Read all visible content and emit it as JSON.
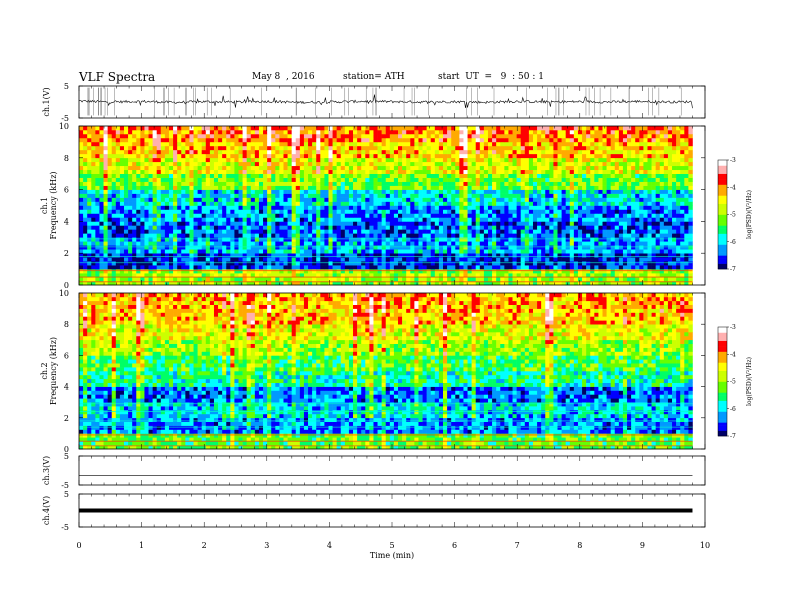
{
  "header": {
    "title": "VLF  Spectra",
    "date": "May 8  , 2016",
    "station": "station= ATH",
    "start": "start  UT  =   9  : 50 : 1"
  },
  "chart_data": [
    {
      "type": "line",
      "panel": "ch1-waveform",
      "ylabel": "ch.1(V)",
      "ylim": [
        -5,
        5
      ],
      "yticks": [
        "5",
        "-5"
      ],
      "xlim": [
        0,
        10
      ],
      "x": [
        0.0,
        0.5,
        1.0,
        1.5,
        2.0,
        2.5,
        3.0,
        3.5,
        4.0,
        4.5,
        5.0,
        5.5,
        6.0,
        6.5,
        7.0,
        7.5,
        8.0,
        8.5,
        9.0,
        9.5,
        9.8
      ],
      "y": [
        0.3,
        0.0,
        0.2,
        -0.1,
        0.1,
        0.0,
        0.2,
        -0.1,
        0.0,
        0.2,
        0.1,
        0.0,
        0.1,
        -0.1,
        0.2,
        0.0,
        0.1,
        0.0,
        0.2,
        0.0,
        0.1
      ],
      "color": "#000000"
    },
    {
      "type": "heatmap",
      "panel": "ch1-spectrogram",
      "ylabel": "ch.1\nFrequency  (kHz)",
      "ylim": [
        0,
        10
      ],
      "yticks": [
        "0",
        "2",
        "4",
        "6",
        "8",
        "10"
      ],
      "xlim": [
        0,
        9.8
      ],
      "band_floor_log_psd": [
        -5.0,
        -6.7,
        -6.2,
        -6.5,
        -6.3,
        -6.0,
        -5.2,
        -4.7,
        -4.3,
        -4.0
      ],
      "colorbar": {
        "label": "log(PSD)(V²/Hz)",
        "range": [
          -7,
          -3
        ],
        "ticks": [
          "-3",
          "-4",
          "-5",
          "-6",
          "-7"
        ]
      }
    },
    {
      "type": "heatmap",
      "panel": "ch2-spectrogram",
      "ylabel": "ch.2\nFrequency  (kHz)",
      "ylim": [
        0,
        10
      ],
      "yticks": [
        "0",
        "2",
        "4",
        "6",
        "8",
        "10"
      ],
      "xlim": [
        0,
        9.8
      ],
      "band_floor_log_psd": [
        -5.3,
        -6.3,
        -6.0,
        -6.4,
        -5.7,
        -5.4,
        -5.0,
        -4.6,
        -4.3,
        -4.2
      ],
      "colorbar": {
        "label": "log(PSD)(V²/Hz)",
        "range": [
          -7,
          -3
        ],
        "ticks": [
          "-3",
          "-4",
          "-5",
          "-6",
          "-7"
        ]
      }
    },
    {
      "type": "line",
      "panel": "ch3-waveform",
      "ylabel": "ch.3(V)",
      "ylim": [
        -5,
        5
      ],
      "yticks": [
        "5",
        "-5"
      ],
      "xlim": [
        0,
        10
      ],
      "x": [
        0,
        9.8
      ],
      "y": [
        -1.8,
        -1.8
      ],
      "color": "#000000"
    },
    {
      "type": "line",
      "panel": "ch4-waveform",
      "ylabel": "ch.4(V)",
      "ylim": [
        -5,
        5
      ],
      "yticks": [
        "5",
        "-5"
      ],
      "xlim": [
        0,
        10
      ],
      "x": [
        0,
        9.8
      ],
      "y": [
        0,
        0
      ],
      "color": "#000000"
    }
  ],
  "xaxis": {
    "label": "Time  (min)",
    "ticks": [
      "0",
      "1",
      "2",
      "3",
      "4",
      "5",
      "6",
      "7",
      "8",
      "9",
      "10"
    ]
  },
  "colors": {
    "scale": [
      "#000066",
      "#0000ff",
      "#0099ff",
      "#00ffff",
      "#00ff66",
      "#66ff00",
      "#ccff00",
      "#ffff00",
      "#ffaa00",
      "#ff0000",
      "#ffb0b0",
      "#ffffff"
    ]
  }
}
